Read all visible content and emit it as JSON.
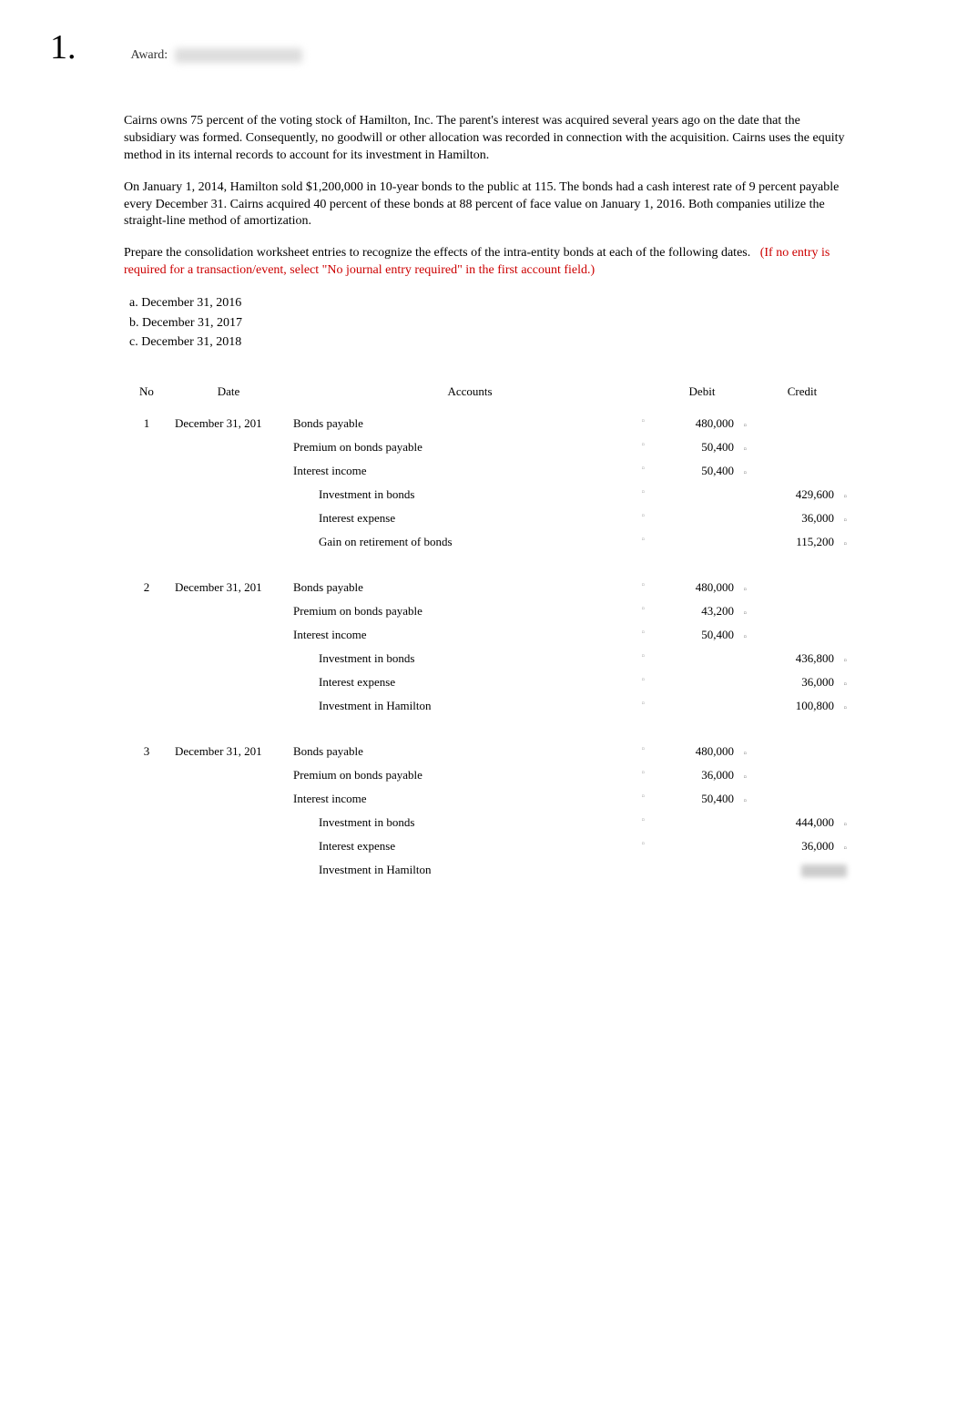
{
  "question_number": "1.",
  "award_label": "Award:",
  "body": {
    "p1": "Cairns owns 75 percent of the voting stock of Hamilton, Inc. The parent's interest was acquired several years ago on the date that the subsidiary was formed. Consequently, no goodwill or other allocation was recorded in connection with the acquisition. Cairns uses the equity method in its internal records to account for its investment in Hamilton.",
    "p2": "On January 1, 2014, Hamilton sold $1,200,000 in 10-year bonds to the public at 115. The bonds had a cash interest rate of 9 percent payable every December 31. Cairns acquired 40 percent of these bonds at 88 percent of face value on January 1, 2016. Both companies utilize the straight-line method of amortization.",
    "p3_a": "Prepare the consolidation worksheet entries to recognize the effects of the intra-entity bonds at each of the following dates.",
    "p3_red": "(If no entry is required for a transaction/event, select \"No journal entry required\" in the first account field.)",
    "list_a": "a.  December 31, 2016",
    "list_b": "b.  December 31, 2017",
    "list_c": "c.  December 31, 2018"
  },
  "table": {
    "headers": {
      "no": "No",
      "date": "Date",
      "accounts": "Accounts",
      "debit": "Debit",
      "credit": "Credit"
    },
    "entries": [
      {
        "no": "1",
        "date": "December 31, 201",
        "lines": [
          {
            "acct": "Bonds payable",
            "indent": false,
            "debit": "480,000",
            "credit": ""
          },
          {
            "acct": "Premium on bonds payable",
            "indent": false,
            "debit": "50,400",
            "credit": ""
          },
          {
            "acct": "Interest income",
            "indent": false,
            "debit": "50,400",
            "credit": ""
          },
          {
            "acct": "Investment in bonds",
            "indent": true,
            "debit": "",
            "credit": "429,600"
          },
          {
            "acct": "Interest expense",
            "indent": true,
            "debit": "",
            "credit": "36,000"
          },
          {
            "acct": "Gain on retirement of bonds",
            "indent": true,
            "debit": "",
            "credit": "115,200"
          }
        ]
      },
      {
        "no": "2",
        "date": "December 31, 201",
        "lines": [
          {
            "acct": "Bonds payable",
            "indent": false,
            "debit": "480,000",
            "credit": ""
          },
          {
            "acct": "Premium on bonds payable",
            "indent": false,
            "debit": "43,200",
            "credit": ""
          },
          {
            "acct": "Interest income",
            "indent": false,
            "debit": "50,400",
            "credit": ""
          },
          {
            "acct": "Investment in bonds",
            "indent": true,
            "debit": "",
            "credit": "436,800"
          },
          {
            "acct": "Interest expense",
            "indent": true,
            "debit": "",
            "credit": "36,000"
          },
          {
            "acct": "Investment in Hamilton",
            "indent": true,
            "debit": "",
            "credit": "100,800"
          }
        ]
      },
      {
        "no": "3",
        "date": "December 31, 201",
        "lines": [
          {
            "acct": "Bonds payable",
            "indent": false,
            "debit": "480,000",
            "credit": ""
          },
          {
            "acct": "Premium on bonds payable",
            "indent": false,
            "debit": "36,000",
            "credit": ""
          },
          {
            "acct": "Interest income",
            "indent": false,
            "debit": "50,400",
            "credit": ""
          },
          {
            "acct": "Investment in bonds",
            "indent": true,
            "debit": "",
            "credit": "444,000"
          },
          {
            "acct": "Interest expense",
            "indent": true,
            "debit": "",
            "credit": "36,000"
          },
          {
            "acct": "Investment in Hamilton",
            "indent": true,
            "debit": "",
            "credit": "",
            "blurred": true
          }
        ]
      }
    ]
  },
  "colors": {
    "text": "#000000",
    "red": "#cc0000",
    "tick": "#888888",
    "bg": "#ffffff"
  }
}
